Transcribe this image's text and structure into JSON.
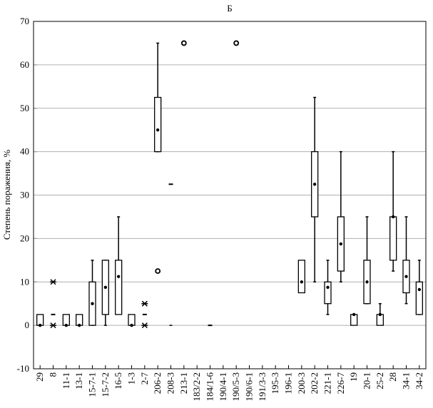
{
  "chart_data": {
    "type": "box",
    "title": "Б",
    "ylabel": "Степень поражения, %",
    "categories": [
      "29",
      "8",
      "11-1",
      "13-1",
      "15-7-1",
      "15-7-2",
      "16-5",
      "1-3",
      "2-7",
      "206-2",
      "208-3",
      "213-1",
      "183/2-2",
      "184/1-6",
      "190/4-1",
      "190/5-3",
      "190/6-1",
      "191/3-3",
      "195-3",
      "196-1",
      "200-3",
      "202-2",
      "221-1",
      "226-7",
      "19",
      "20-1",
      "25-2",
      "28",
      "34-1",
      "34-2"
    ],
    "q1": [
      0,
      null,
      0,
      0,
      0,
      2.5,
      2.5,
      0,
      null,
      40,
      null,
      null,
      null,
      null,
      null,
      null,
      null,
      null,
      null,
      null,
      7.5,
      25,
      5,
      12.5,
      0,
      5,
      0,
      15,
      7.5,
      2.5
    ],
    "q3": [
      2.5,
      null,
      2.5,
      2.5,
      10,
      15,
      15,
      2.5,
      null,
      52.5,
      null,
      null,
      null,
      null,
      null,
      null,
      null,
      null,
      null,
      null,
      15,
      40,
      10,
      25,
      2.5,
      15,
      2.5,
      25,
      15,
      10
    ],
    "median": [
      0,
      2.5,
      0,
      0,
      5,
      8.75,
      11.25,
      0,
      2.5,
      45,
      32.5,
      null,
      null,
      0,
      null,
      null,
      null,
      null,
      null,
      null,
      10,
      32.5,
      8.75,
      18.75,
      2.5,
      10,
      2.5,
      25,
      11.25,
      8.25
    ],
    "whisker_low": [
      null,
      null,
      null,
      null,
      0,
      0,
      null,
      null,
      null,
      40,
      0,
      null,
      null,
      null,
      null,
      null,
      null,
      null,
      null,
      null,
      null,
      10,
      2.5,
      10,
      null,
      5,
      null,
      12.5,
      5,
      2.5
    ],
    "whisker_high": [
      null,
      null,
      null,
      null,
      15,
      15,
      25,
      null,
      null,
      65,
      null,
      null,
      null,
      null,
      null,
      null,
      null,
      null,
      null,
      null,
      null,
      52.5,
      15,
      40,
      null,
      25,
      5,
      40,
      25,
      15
    ],
    "outliers": [
      [],
      [],
      [],
      [],
      [],
      [],
      [],
      [],
      [],
      [
        12.5
      ],
      [],
      [
        65
      ],
      [],
      [],
      [],
      [
        65
      ],
      [],
      [],
      [],
      [],
      [],
      [],
      [],
      [],
      [],
      [],
      [],
      [],
      [],
      []
    ],
    "extremes": [
      [],
      [
        10,
        0
      ],
      [],
      [],
      [],
      [],
      [],
      [],
      [
        5,
        0
      ],
      [],
      [],
      [],
      [],
      [],
      [],
      [],
      [],
      [],
      [],
      [],
      [],
      [],
      [],
      [],
      [],
      [],
      [],
      [],
      [],
      []
    ],
    "ylim": [
      -10,
      70
    ],
    "yticks": [
      -10,
      0,
      10,
      20,
      30,
      40,
      50,
      60,
      70
    ],
    "grid": true,
    "color": "#000000",
    "grid_color": "#b0b0b0"
  }
}
